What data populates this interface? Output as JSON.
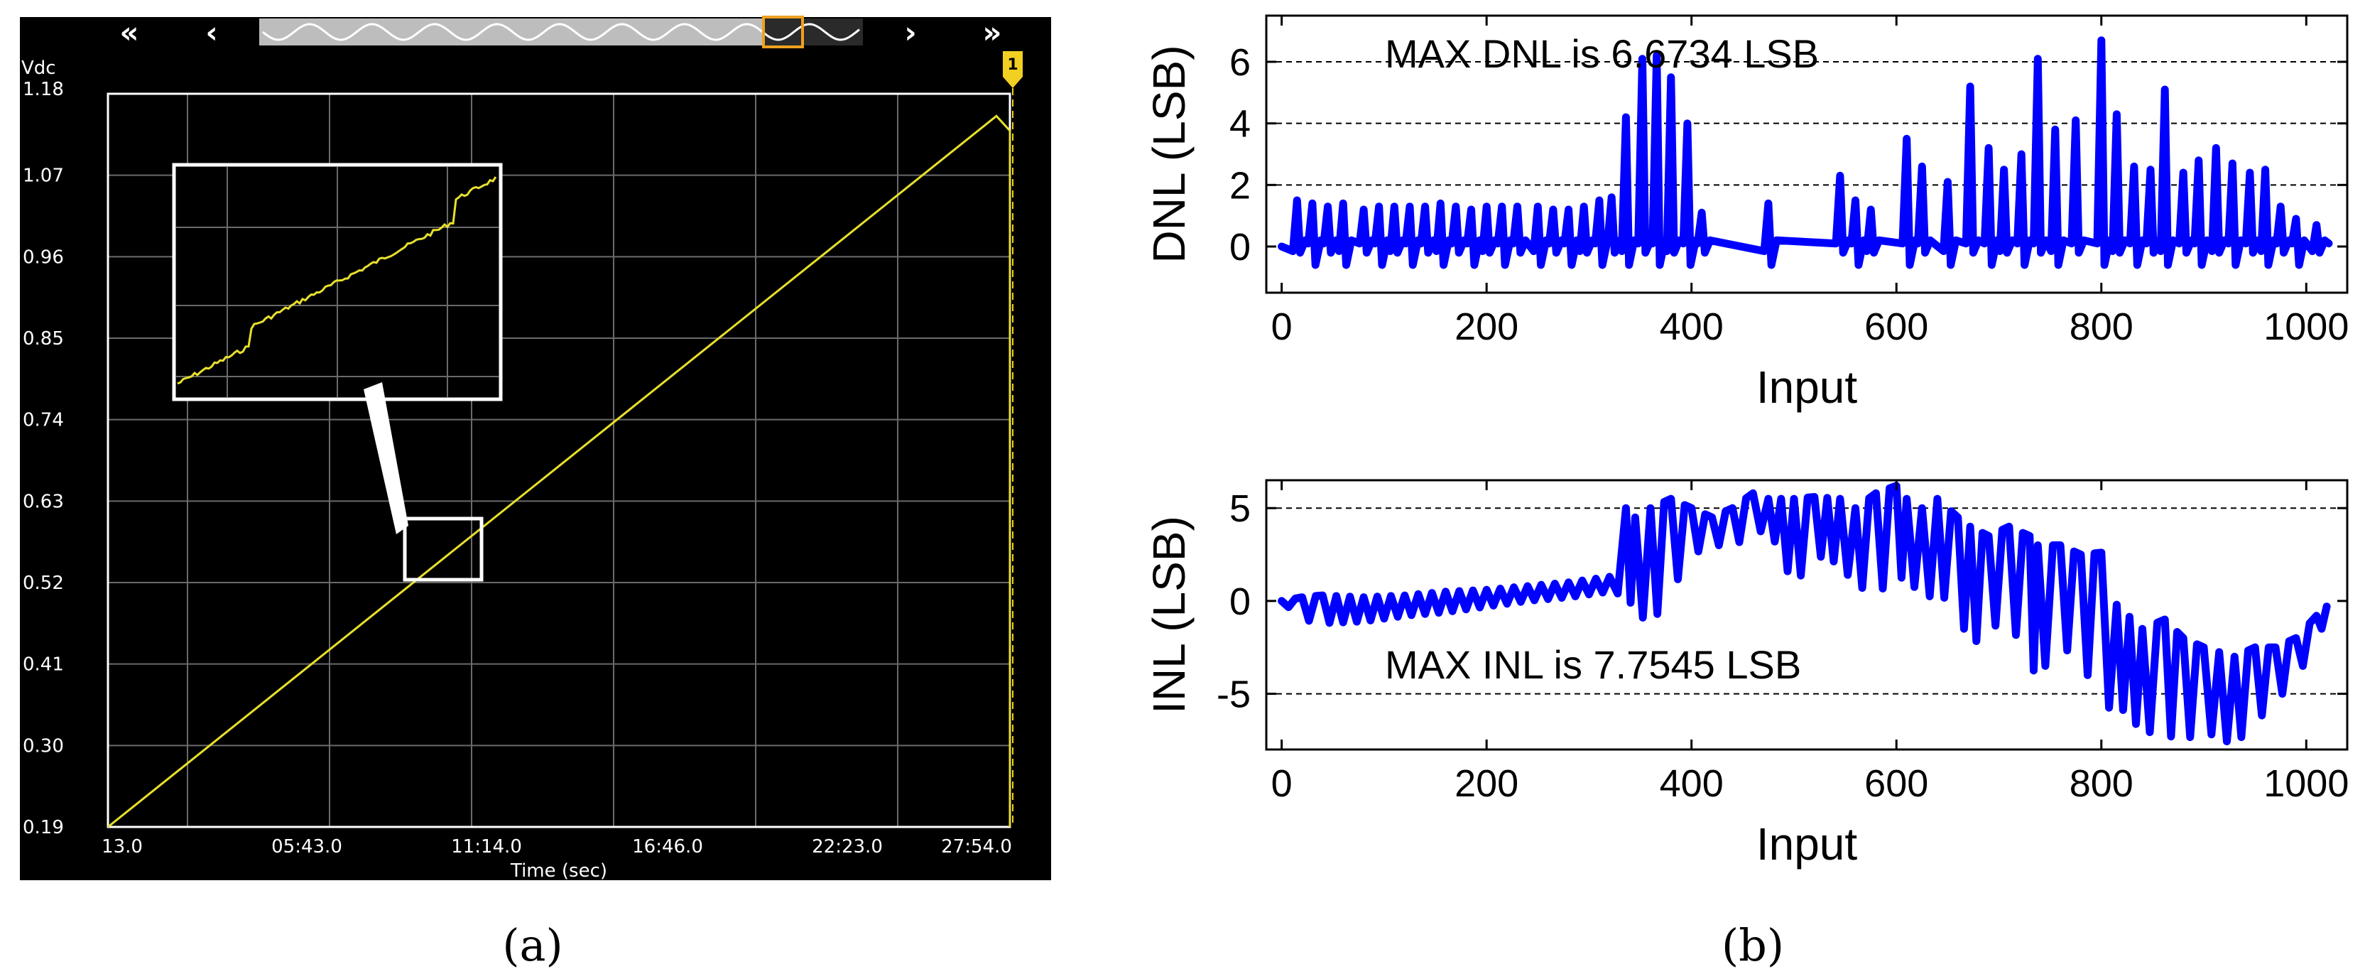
{
  "panels": {
    "a": "(a)",
    "b": "(b)"
  },
  "oscilloscope": {
    "nav": {
      "first": "«",
      "prev": "‹",
      "next": "›",
      "last": "»"
    },
    "marker": "1",
    "ylabel": "Vdc",
    "xlabel": "Time (sec)",
    "colors": {
      "background": "#000000",
      "trace": "#e8e02c",
      "grid": "#6a6a6a",
      "frame": "#ffffff",
      "marker": "#f2d021"
    }
  },
  "chart_data": [
    {
      "type": "line",
      "panel": "a",
      "xlabel": "Time (sec)",
      "ylabel": "Vdc",
      "yticks": [
        "1.18",
        "1.07",
        "0.96",
        "0.85",
        "0.74",
        "0.63",
        "0.52",
        "0.41",
        "0.30",
        "0.19"
      ],
      "xticks": [
        "13.0",
        "05:43.0",
        "11:14.0",
        "16:46.0",
        "22:23.0",
        "27:54.0"
      ],
      "ylim": [
        0.19,
        1.18
      ],
      "grid": true,
      "series": [
        {
          "x": [
            0,
            0.985,
            1.0,
            1.0
          ],
          "y": [
            0.19,
            1.15,
            1.13,
            0.19
          ]
        }
      ]
    },
    {
      "type": "line",
      "panel": "b-top",
      "xlabel": "Input",
      "ylabel": "DNL (LSB)",
      "annotation": "MAX DNL is 6.6734 LSB",
      "xlim": [
        -15,
        1040
      ],
      "ylim": [
        -1.5,
        7.5
      ],
      "xticks": [
        "0",
        "200",
        "400",
        "600",
        "800",
        "1000"
      ],
      "yticks": [
        "0",
        "2",
        "4",
        "6"
      ],
      "grid": "horizontal-dashed",
      "color": "#0000ff",
      "spikes": [
        [
          15,
          1.5
        ],
        [
          30,
          1.4
        ],
        [
          45,
          1.3
        ],
        [
          60,
          1.4
        ],
        [
          80,
          1.2
        ],
        [
          95,
          1.3
        ],
        [
          110,
          1.3
        ],
        [
          125,
          1.3
        ],
        [
          140,
          1.3
        ],
        [
          155,
          1.4
        ],
        [
          170,
          1.3
        ],
        [
          185,
          1.2
        ],
        [
          200,
          1.3
        ],
        [
          215,
          1.3
        ],
        [
          230,
          1.3
        ],
        [
          250,
          1.3
        ],
        [
          265,
          1.2
        ],
        [
          280,
          1.2
        ],
        [
          295,
          1.3
        ],
        [
          310,
          1.5
        ],
        [
          322,
          1.6
        ],
        [
          336,
          4.2
        ],
        [
          352,
          6.1
        ],
        [
          366,
          6.2
        ],
        [
          380,
          5.5
        ],
        [
          396,
          4.0
        ],
        [
          410,
          1.1
        ],
        [
          475,
          1.4
        ],
        [
          545,
          2.3
        ],
        [
          560,
          1.5
        ],
        [
          575,
          1.2
        ],
        [
          610,
          3.5
        ],
        [
          625,
          2.6
        ],
        [
          650,
          2.1
        ],
        [
          672,
          5.2
        ],
        [
          690,
          3.2
        ],
        [
          705,
          2.5
        ],
        [
          722,
          3.0
        ],
        [
          738,
          6.1
        ],
        [
          755,
          3.8
        ],
        [
          775,
          4.1
        ],
        [
          800,
          6.7
        ],
        [
          815,
          4.3
        ],
        [
          832,
          2.6
        ],
        [
          848,
          2.5
        ],
        [
          862,
          5.1
        ],
        [
          880,
          2.4
        ],
        [
          895,
          2.8
        ],
        [
          912,
          3.2
        ],
        [
          928,
          2.7
        ],
        [
          945,
          2.4
        ],
        [
          960,
          2.5
        ],
        [
          975,
          1.3
        ],
        [
          990,
          0.9
        ],
        [
          1010,
          0.7
        ]
      ]
    },
    {
      "type": "line",
      "panel": "b-bottom",
      "xlabel": "Input",
      "ylabel": "INL (LSB)",
      "annotation": "MAX INL is 7.7545 LSB",
      "xlim": [
        -15,
        1040
      ],
      "ylim": [
        -8,
        6.5
      ],
      "xticks": [
        "0",
        "200",
        "400",
        "600",
        "800",
        "1000"
      ],
      "yticks": [
        "5",
        "0",
        "-5"
      ],
      "grid": "horizontal-dashed",
      "color": "#0000ff",
      "envelope": [
        [
          0,
          0,
          0
        ],
        [
          20,
          -1.0,
          0.2
        ],
        [
          40,
          -1.2,
          0.3
        ],
        [
          80,
          -1.1,
          0.2
        ],
        [
          120,
          -0.8,
          0.3
        ],
        [
          160,
          -0.6,
          0.5
        ],
        [
          200,
          -0.3,
          0.6
        ],
        [
          240,
          0.0,
          0.8
        ],
        [
          280,
          0.2,
          1.0
        ],
        [
          320,
          0.5,
          1.3
        ],
        [
          336,
          0.3,
          5.0
        ],
        [
          345,
          -0.5,
          4.5
        ],
        [
          360,
          -1.3,
          5.0
        ],
        [
          380,
          0.5,
          5.5
        ],
        [
          400,
          2.5,
          5.0
        ],
        [
          420,
          3.0,
          4.5
        ],
        [
          440,
          3.0,
          5.0
        ],
        [
          460,
          3.5,
          5.8
        ],
        [
          475,
          4.0,
          5.5
        ],
        [
          500,
          0.8,
          5.5
        ],
        [
          520,
          2.5,
          5.6
        ],
        [
          545,
          2.0,
          5.5
        ],
        [
          560,
          0.8,
          5.0
        ],
        [
          580,
          0.5,
          5.8
        ],
        [
          600,
          1.0,
          6.2
        ],
        [
          610,
          1.5,
          5.5
        ],
        [
          625,
          0.0,
          5.0
        ],
        [
          640,
          0.5,
          5.5
        ],
        [
          660,
          -0.5,
          4.5
        ],
        [
          672,
          -2.5,
          4.0
        ],
        [
          690,
          -1.5,
          3.5
        ],
        [
          710,
          -1.0,
          4.0
        ],
        [
          730,
          -3.5,
          3.5
        ],
        [
          738,
          -4.0,
          3.0
        ],
        [
          760,
          -2.5,
          3.0
        ],
        [
          780,
          -3.0,
          2.5
        ],
        [
          800,
          -6.0,
          2.6
        ],
        [
          815,
          -5.5,
          -0.2
        ],
        [
          840,
          -7.0,
          -1.5
        ],
        [
          862,
          -7.2,
          -1.0
        ],
        [
          880,
          -7.5,
          -2.0
        ],
        [
          900,
          -7.0,
          -2.5
        ],
        [
          930,
          -7.75,
          -3.0
        ],
        [
          950,
          -6.5,
          -2.5
        ],
        [
          970,
          -5.5,
          -2.5
        ],
        [
          990,
          -4.0,
          -2.0
        ],
        [
          1010,
          -2.5,
          -0.8
        ],
        [
          1020,
          -0.5,
          -0.3
        ]
      ]
    }
  ]
}
